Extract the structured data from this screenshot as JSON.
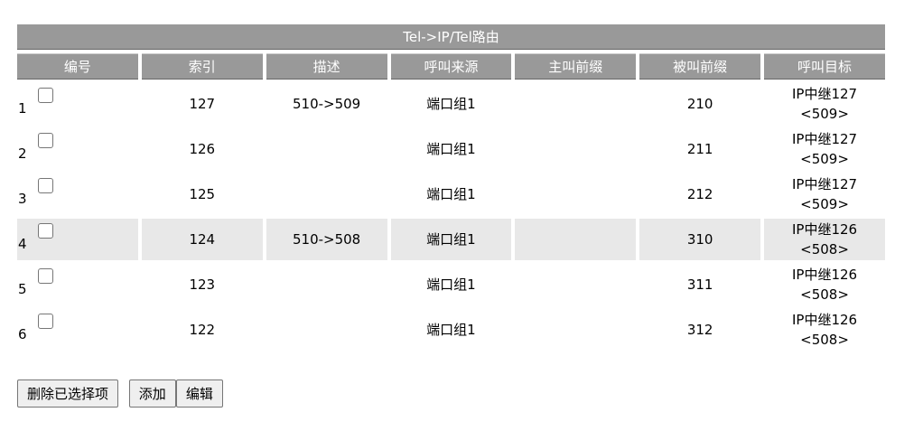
{
  "table": {
    "title": "Tel->IP/Tel路由",
    "headers": [
      "编号",
      "索引",
      "描述",
      "呼叫来源",
      "主叫前缀",
      "被叫前缀",
      "呼叫目标"
    ],
    "rows": [
      {
        "no": "1",
        "index": "127",
        "desc": "510->509",
        "source": "端口组1",
        "caller": "",
        "callee": "210",
        "target1": "IP中继127",
        "target2": "<509>",
        "highlight": false
      },
      {
        "no": "2",
        "index": "126",
        "desc": "",
        "source": "端口组1",
        "caller": "",
        "callee": "211",
        "target1": "IP中继127",
        "target2": "<509>",
        "highlight": false
      },
      {
        "no": "3",
        "index": "125",
        "desc": "",
        "source": "端口组1",
        "caller": "",
        "callee": "212",
        "target1": "IP中继127",
        "target2": "<509>",
        "highlight": false
      },
      {
        "no": "4",
        "index": "124",
        "desc": "510->508",
        "source": "端口组1",
        "caller": "",
        "callee": "310",
        "target1": "IP中继126",
        "target2": "<508>",
        "highlight": true
      },
      {
        "no": "5",
        "index": "123",
        "desc": "",
        "source": "端口组1",
        "caller": "",
        "callee": "311",
        "target1": "IP中继126",
        "target2": "<508>",
        "highlight": false
      },
      {
        "no": "6",
        "index": "122",
        "desc": "",
        "source": "端口组1",
        "caller": "",
        "callee": "312",
        "target1": "IP中继126",
        "target2": "<508>",
        "highlight": false
      }
    ]
  },
  "buttons": {
    "delete": "删除已选择项",
    "add": "添加",
    "edit": "编辑"
  }
}
